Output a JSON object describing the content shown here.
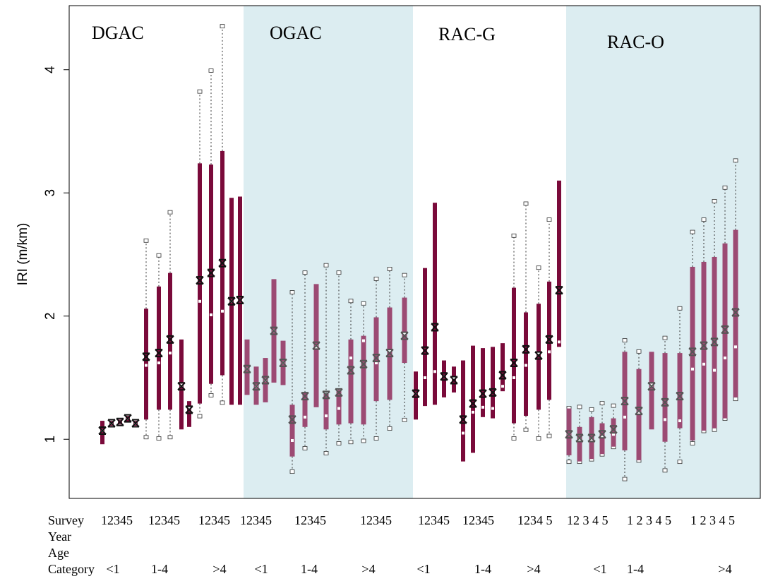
{
  "chart_data": {
    "type": "boxplot",
    "ylabel": "IRI (m/km)",
    "ylim": [
      0.52,
      4.52
    ],
    "yticks": [
      1,
      2,
      3,
      4
    ],
    "row_labels": [
      "Survey",
      "Year",
      "Age",
      "Category"
    ],
    "groups": [
      {
        "name": "DGAC",
        "shaded": false,
        "color": "#7a0a3a",
        "survey_labels": [
          "12345",
          "12345",
          "12345"
        ],
        "age_labels": [
          "<1",
          "1-4",
          ">4"
        ],
        "boxes": [
          {
            "q1": 0.96,
            "median": 1.07,
            "q3": 1.15,
            "mean": 1.07
          },
          {
            "q1": 1.11,
            "median": 1.13,
            "q3": 1.15,
            "mean": 1.13
          },
          {
            "q1": 1.12,
            "median": 1.14,
            "q3": 1.16,
            "mean": 1.14
          },
          {
            "q1": 1.14,
            "median": 1.17,
            "q3": 1.19,
            "mean": 1.17
          },
          {
            "q1": 1.11,
            "median": 1.13,
            "q3": 1.15,
            "mean": 1.13
          },
          {
            "low": 1.02,
            "q1": 1.16,
            "median": 1.6,
            "q3": 2.06,
            "high": 2.61,
            "mean": 1.67
          },
          {
            "low": 1.01,
            "q1": 1.24,
            "median": 1.62,
            "q3": 2.24,
            "high": 2.49,
            "mean": 1.7
          },
          {
            "low": 1.02,
            "q1": 1.24,
            "median": 1.7,
            "q3": 2.35,
            "high": 2.84,
            "mean": 1.81
          },
          {
            "q1": 1.08,
            "median": 1.44,
            "q3": 1.81,
            "mean": 1.43
          },
          {
            "q1": 1.1,
            "median": 1.25,
            "q3": 1.31,
            "mean": 1.24
          },
          {
            "low": 1.19,
            "q1": 1.29,
            "median": 2.12,
            "q3": 3.24,
            "high": 3.82,
            "mean": 2.29
          },
          {
            "low": 1.36,
            "q1": 1.45,
            "median": 2.01,
            "q3": 3.23,
            "high": 3.99,
            "mean": 2.35
          },
          {
            "low": 1.3,
            "q1": 1.52,
            "median": 2.04,
            "q3": 3.34,
            "high": 4.35,
            "mean": 2.43
          },
          {
            "q1": 1.28,
            "median": 2.12,
            "q3": 2.96,
            "mean": 2.12
          },
          {
            "q1": 1.28,
            "median": 2.13,
            "q3": 2.97,
            "mean": 2.13
          }
        ]
      },
      {
        "name": "OGAC",
        "shaded": true,
        "color": "#9c4a73",
        "survey_labels": [
          "12345",
          "12345",
          "12345"
        ],
        "age_labels": [
          "<1",
          "1-4",
          ">4"
        ],
        "boxes": [
          {
            "q1": 1.36,
            "median": 1.57,
            "q3": 1.81,
            "mean": 1.57
          },
          {
            "q1": 1.28,
            "median": 1.43,
            "q3": 1.59,
            "mean": 1.43
          },
          {
            "q1": 1.3,
            "median": 1.48,
            "q3": 1.66,
            "mean": 1.48
          },
          {
            "q1": 1.46,
            "median": 1.88,
            "q3": 2.3,
            "mean": 1.88
          },
          {
            "q1": 1.44,
            "median": 1.62,
            "q3": 1.8,
            "mean": 1.62
          },
          {
            "low": 0.74,
            "q1": 0.86,
            "median": 0.99,
            "q3": 1.28,
            "high": 2.19,
            "mean": 1.16
          },
          {
            "low": 0.93,
            "q1": 1.1,
            "median": 1.18,
            "q3": 1.38,
            "high": 2.35,
            "mean": 1.35
          },
          {
            "q1": 1.26,
            "median": 1.75,
            "q3": 2.26,
            "mean": 1.76
          },
          {
            "low": 0.89,
            "q1": 1.08,
            "median": 1.19,
            "q3": 1.37,
            "high": 2.41,
            "mean": 1.36
          },
          {
            "low": 0.97,
            "q1": 1.12,
            "median": 1.25,
            "q3": 1.4,
            "high": 2.35,
            "mean": 1.38
          },
          {
            "low": 0.98,
            "q1": 1.13,
            "median": 1.66,
            "q3": 1.81,
            "high": 2.12,
            "mean": 1.56
          },
          {
            "low": 0.99,
            "q1": 1.12,
            "median": 1.8,
            "q3": 1.84,
            "high": 2.1,
            "mean": 1.61
          },
          {
            "low": 1.01,
            "q1": 1.31,
            "median": 1.62,
            "q3": 1.99,
            "high": 2.3,
            "mean": 1.66
          },
          {
            "low": 1.09,
            "q1": 1.32,
            "median": 1.72,
            "q3": 2.07,
            "high": 2.38,
            "mean": 1.7
          },
          {
            "low": 1.16,
            "q1": 1.62,
            "median": 1.86,
            "q3": 2.15,
            "high": 2.33,
            "mean": 1.84
          }
        ]
      },
      {
        "name": "RAC-G",
        "shaded": false,
        "color": "#7a0a3a",
        "survey_labels": [
          "12345",
          "12345",
          "1234 5"
        ],
        "age_labels": [
          "<1",
          "1-4",
          ">4"
        ],
        "boxes": [
          {
            "q1": 1.16,
            "median": 1.37,
            "q3": 1.55,
            "mean": 1.37
          },
          {
            "q1": 1.27,
            "median": 1.5,
            "q3": 2.39,
            "mean": 1.72
          },
          {
            "q1": 1.28,
            "median": 1.55,
            "q3": 2.92,
            "mean": 1.91
          },
          {
            "q1": 1.34,
            "median": 1.51,
            "q3": 1.64,
            "mean": 1.51
          },
          {
            "q1": 1.38,
            "median": 1.5,
            "q3": 1.59,
            "mean": 1.48
          },
          {
            "q1": 0.82,
            "median": 1.05,
            "q3": 1.64,
            "mean": 1.16
          },
          {
            "q1": 0.89,
            "median": 1.22,
            "q3": 1.76,
            "mean": 1.29
          },
          {
            "q1": 1.18,
            "median": 1.26,
            "q3": 1.74,
            "mean": 1.37
          },
          {
            "q1": 1.17,
            "median": 1.25,
            "q3": 1.75,
            "mean": 1.38
          },
          {
            "q1": 1.39,
            "median": 1.43,
            "q3": 1.78,
            "mean": 1.52
          },
          {
            "low": 1.01,
            "q1": 1.13,
            "median": 1.5,
            "q3": 2.23,
            "high": 2.65,
            "mean": 1.62
          },
          {
            "low": 1.08,
            "q1": 1.19,
            "median": 1.6,
            "q3": 2.03,
            "high": 2.91,
            "mean": 1.73
          },
          {
            "low": 1.01,
            "q1": 1.24,
            "median": 1.7,
            "q3": 2.1,
            "high": 2.39,
            "mean": 1.68
          },
          {
            "low": 1.03,
            "q1": 1.32,
            "median": 1.71,
            "q3": 2.28,
            "high": 2.78,
            "mean": 1.81
          },
          {
            "q1": 1.75,
            "median": 1.79,
            "q3": 3.1,
            "mean": 2.21
          }
        ]
      },
      {
        "name": "RAC-O",
        "shaded": true,
        "color": "#9c4a73",
        "survey_labels": [
          "12 3 4 5",
          "1 2 3 4 5",
          "1 2 3 4 5"
        ],
        "age_labels": [
          "<1",
          "1-4",
          ">4"
        ],
        "boxes": [
          {
            "low": 0.82,
            "q1": 0.87,
            "median": 1.04,
            "q3": 1.25,
            "high": 1.25,
            "mean": 1.04
          },
          {
            "low": 0.82,
            "q1": 0.82,
            "median": 1.0,
            "q3": 1.1,
            "high": 1.26,
            "mean": 1.01
          },
          {
            "low": 0.84,
            "q1": 0.84,
            "median": 1.0,
            "q3": 1.18,
            "high": 1.24,
            "mean": 1.01
          },
          {
            "low": 0.88,
            "q1": 0.88,
            "median": 1.02,
            "q3": 1.13,
            "high": 1.29,
            "mean": 1.04
          },
          {
            "low": 0.94,
            "q1": 0.94,
            "median": 1.04,
            "q3": 1.17,
            "high": 1.27,
            "mean": 1.08
          },
          {
            "low": 0.68,
            "q1": 0.91,
            "median": 1.18,
            "q3": 1.71,
            "high": 1.8,
            "mean": 1.31
          },
          {
            "low": 0.83,
            "q1": 0.83,
            "median": 1.22,
            "q3": 1.57,
            "high": 1.71,
            "mean": 1.23
          },
          {
            "q1": 1.08,
            "median": 1.44,
            "q3": 1.71,
            "mean": 1.43
          },
          {
            "low": 0.75,
            "q1": 0.98,
            "median": 1.16,
            "q3": 1.7,
            "high": 1.82,
            "mean": 1.3
          },
          {
            "low": 0.82,
            "q1": 1.09,
            "median": 1.15,
            "q3": 1.7,
            "high": 2.06,
            "mean": 1.35
          },
          {
            "low": 0.97,
            "q1": 0.99,
            "median": 1.57,
            "q3": 2.4,
            "high": 2.68,
            "mean": 1.71
          },
          {
            "low": 1.07,
            "q1": 1.07,
            "median": 1.61,
            "q3": 2.44,
            "high": 2.78,
            "mean": 1.76
          },
          {
            "low": 1.08,
            "q1": 1.09,
            "median": 1.56,
            "q3": 2.48,
            "high": 2.93,
            "mean": 1.79
          },
          {
            "low": 1.17,
            "q1": 1.17,
            "median": 1.66,
            "q3": 2.59,
            "high": 3.04,
            "mean": 1.89
          },
          {
            "low": 1.33,
            "q1": 1.34,
            "median": 1.75,
            "q3": 2.7,
            "high": 3.26,
            "mean": 2.03
          }
        ]
      }
    ]
  }
}
